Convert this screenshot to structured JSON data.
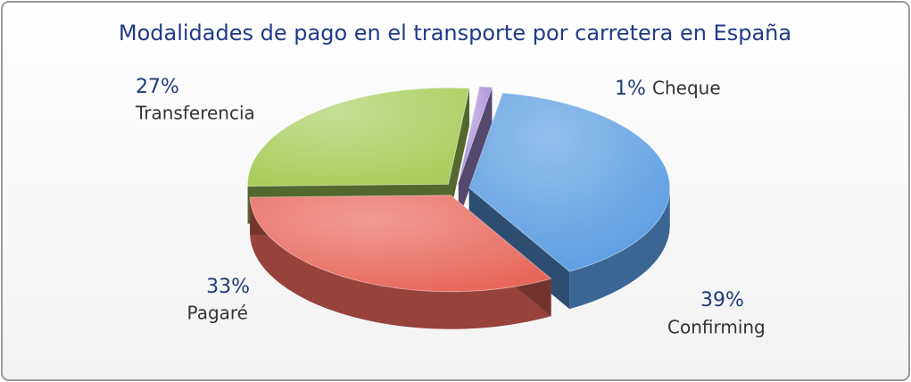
{
  "chart_data": {
    "type": "pie",
    "title": "Modalidades de pago en el transporte por carretera en España",
    "categories": [
      "Cheque",
      "Confirming",
      "Pagaré",
      "Transferencia"
    ],
    "values": [
      1,
      39,
      33,
      27
    ],
    "value_labels": [
      "1%",
      "39%",
      "33%",
      "27%"
    ],
    "colors": [
      "#a98fd8",
      "#5b9de2",
      "#e8675c",
      "#a8cd5c"
    ]
  }
}
